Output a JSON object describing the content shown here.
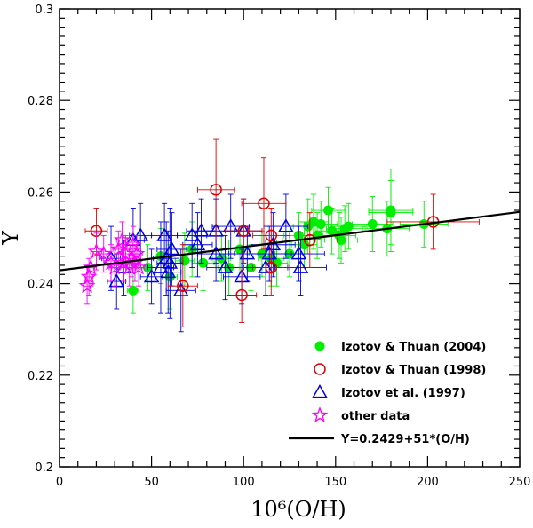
{
  "chart_data": {
    "type": "scatter",
    "title": "",
    "xlabel": "10⁶(O/H)",
    "ylabel": "Y",
    "xlim": [
      0,
      250
    ],
    "ylim": [
      0.2,
      0.3
    ],
    "x_ticks": [
      "0",
      "50",
      "100",
      "150",
      "200",
      "250"
    ],
    "y_ticks": [
      "0.2",
      "0.22",
      "0.24",
      "0.26",
      "0.28",
      "0.3"
    ],
    "legend_position": "bottom-right",
    "colors": {
      "izotov_2004": "#00ee00",
      "izotov_1998": "#e00000",
      "izotov_1997": "#0000dd",
      "other": "#ff00ff",
      "fit": "#000000"
    },
    "series": [
      {
        "name": "Izotov & Thuan (2004)",
        "marker": "filled-circle",
        "points": [
          [
            40,
            0.2385,
            3,
            0.005
          ],
          [
            48,
            0.2435,
            4,
            0.005
          ],
          [
            55,
            0.246,
            5,
            0.006
          ],
          [
            60,
            0.2415,
            4,
            0.007
          ],
          [
            68,
            0.245,
            5,
            0.006
          ],
          [
            72,
            0.2475,
            5,
            0.006
          ],
          [
            78,
            0.2445,
            6,
            0.006
          ],
          [
            88,
            0.2455,
            5,
            0.005
          ],
          [
            92,
            0.2435,
            6,
            0.006
          ],
          [
            98,
            0.2475,
            6,
            0.005
          ],
          [
            104,
            0.2435,
            6,
            0.005
          ],
          [
            110,
            0.2465,
            7,
            0.005
          ],
          [
            115,
            0.2455,
            7,
            0.006
          ],
          [
            118,
            0.2445,
            6,
            0.005
          ],
          [
            125,
            0.2465,
            8,
            0.005
          ],
          [
            130,
            0.2505,
            8,
            0.005
          ],
          [
            133,
            0.2485,
            7,
            0.005
          ],
          [
            135,
            0.2525,
            8,
            0.006
          ],
          [
            138,
            0.2535,
            8,
            0.006
          ],
          [
            140,
            0.2505,
            8,
            0.005
          ],
          [
            142,
            0.253,
            9,
            0.005
          ],
          [
            146,
            0.256,
            9,
            0.005
          ],
          [
            148,
            0.2515,
            9,
            0.005
          ],
          [
            152,
            0.2505,
            9,
            0.005
          ],
          [
            153,
            0.2495,
            9,
            0.005
          ],
          [
            155,
            0.252,
            10,
            0.005
          ],
          [
            157,
            0.2525,
            10,
            0.005
          ],
          [
            170,
            0.253,
            11,
            0.006
          ],
          [
            178,
            0.252,
            12,
            0.006
          ],
          [
            180,
            0.2555,
            12,
            0.007
          ],
          [
            180,
            0.256,
            12,
            0.009
          ],
          [
            198,
            0.253,
            13,
            0.005
          ]
        ]
      },
      {
        "name": "Izotov & Thuan (1998)",
        "marker": "open-circle",
        "points": [
          [
            20,
            0.2515,
            6,
            0.005
          ],
          [
            67,
            0.2395,
            8,
            0.009
          ],
          [
            85,
            0.2605,
            10,
            0.011
          ],
          [
            99,
            0.2375,
            8,
            0.006
          ],
          [
            100,
            0.2515,
            10,
            0.007
          ],
          [
            111,
            0.2575,
            12,
            0.01
          ],
          [
            115,
            0.2505,
            10,
            0.006
          ],
          [
            115,
            0.2435,
            10,
            0.006
          ],
          [
            136,
            0.2495,
            15,
            0.006
          ],
          [
            203,
            0.2535,
            25,
            0.006
          ]
        ]
      },
      {
        "name": "Izotov et al. (1997)",
        "marker": "open-triangle",
        "points": [
          [
            28,
            0.2455,
            5,
            0.007
          ],
          [
            31,
            0.2405,
            5,
            0.006
          ],
          [
            35,
            0.2435,
            5,
            0.006
          ],
          [
            40,
            0.2495,
            6,
            0.007
          ],
          [
            44,
            0.2505,
            6,
            0.007
          ],
          [
            50,
            0.2415,
            6,
            0.006
          ],
          [
            55,
            0.2435,
            7,
            0.01
          ],
          [
            57,
            0.2505,
            7,
            0.007
          ],
          [
            58,
            0.2455,
            7,
            0.008
          ],
          [
            59,
            0.2425,
            7,
            0.009
          ],
          [
            60,
            0.2445,
            7,
            0.012
          ],
          [
            61,
            0.2475,
            8,
            0.008
          ],
          [
            66,
            0.2385,
            8,
            0.009
          ],
          [
            72,
            0.2505,
            8,
            0.007
          ],
          [
            75,
            0.2485,
            8,
            0.007
          ],
          [
            77,
            0.2515,
            8,
            0.007
          ],
          [
            85,
            0.2465,
            10,
            0.006
          ],
          [
            85,
            0.2515,
            10,
            0.007
          ],
          [
            90,
            0.2435,
            10,
            0.007
          ],
          [
            93,
            0.2525,
            10,
            0.007
          ],
          [
            99,
            0.2415,
            10,
            0.006
          ],
          [
            100,
            0.2515,
            10,
            0.007
          ],
          [
            102,
            0.2465,
            10,
            0.006
          ],
          [
            112,
            0.2435,
            12,
            0.006
          ],
          [
            114,
            0.2465,
            12,
            0.006
          ],
          [
            116,
            0.2485,
            12,
            0.007
          ],
          [
            123,
            0.2525,
            12,
            0.007
          ],
          [
            130,
            0.2465,
            14,
            0.006
          ],
          [
            131,
            0.2435,
            14,
            0.006
          ]
        ]
      },
      {
        "name": "other data",
        "marker": "open-star",
        "points": [
          [
            15,
            0.2395,
            2,
            0.004
          ],
          [
            16,
            0.2415,
            2,
            0.004
          ],
          [
            17,
            0.2435,
            2,
            0.004
          ],
          [
            20,
            0.247,
            3,
            0.004
          ],
          [
            24,
            0.2465,
            3,
            0.004
          ],
          [
            28,
            0.2445,
            3,
            0.004
          ],
          [
            30,
            0.2435,
            3,
            0.004
          ],
          [
            32,
            0.2475,
            3,
            0.004
          ],
          [
            34,
            0.2495,
            3,
            0.004
          ],
          [
            35,
            0.2445,
            3,
            0.004
          ],
          [
            36,
            0.2465,
            3,
            0.004
          ],
          [
            38,
            0.2435,
            3,
            0.004
          ],
          [
            39,
            0.2455,
            3,
            0.004
          ],
          [
            40,
            0.2485,
            3,
            0.004
          ],
          [
            41,
            0.2445,
            3,
            0.004
          ],
          [
            42,
            0.2465,
            3,
            0.004
          ],
          [
            43,
            0.2435,
            3,
            0.004
          ]
        ]
      }
    ],
    "fit": {
      "name": "Y=0.2429+51*(O/H)",
      "intercept": 0.2429,
      "slope_per_1e6": 5.1e-05
    },
    "legend": [
      {
        "label": "Izotov & Thuan (2004)",
        "marker": "filled-circle",
        "color_key": "izotov_2004"
      },
      {
        "label": "Izotov & Thuan (1998)",
        "marker": "open-circle",
        "color_key": "izotov_1998"
      },
      {
        "label": "Izotov et al. (1997)",
        "marker": "open-triangle",
        "color_key": "izotov_1997"
      },
      {
        "label": "other data",
        "marker": "open-star",
        "color_key": "other"
      },
      {
        "label": "Y=0.2429+51*(O/H)",
        "marker": "line",
        "color_key": "fit"
      }
    ]
  }
}
